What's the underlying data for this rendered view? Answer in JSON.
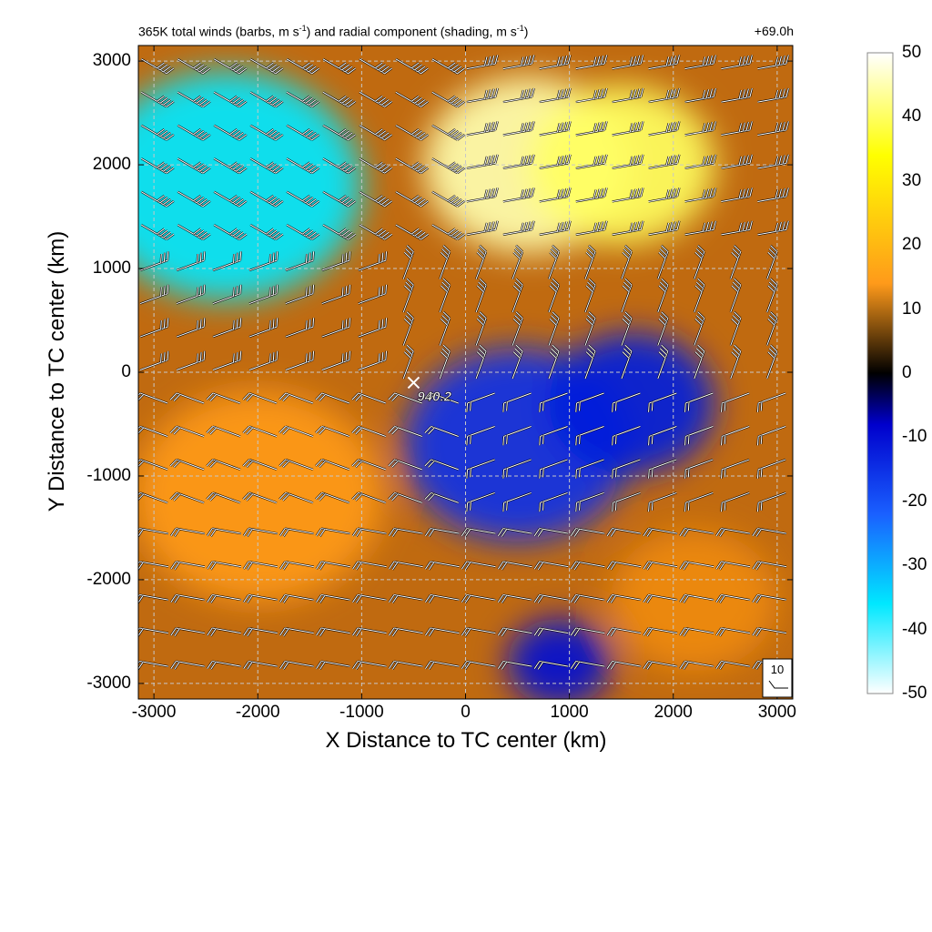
{
  "header": {
    "title_main": "365K total winds (barbs, m s",
    "title_sup1": "-1",
    "title_mid": ") and radial component (shading, m s",
    "title_sup2": "-1",
    "title_end": ")",
    "lead_time": "+69.0h"
  },
  "chart_data": {
    "type": "heatmap",
    "title": "365K total winds (barbs, m s-1) and radial component (shading, m s-1)",
    "lead_time": "+69.0h",
    "xlabel": "X Distance to TC center (km)",
    "ylabel": "Y Distance to TC center (km)",
    "xlim": [
      -3150,
      3150
    ],
    "ylim": [
      -3150,
      3150
    ],
    "xticks": [
      "-3000",
      "-2000",
      "-1000",
      "0",
      "1000",
      "2000",
      "3000"
    ],
    "yticks": [
      "3000",
      "2000",
      "1000",
      "0",
      "-1000",
      "-2000",
      "-3000"
    ],
    "grid": true,
    "colorbar": {
      "range": [
        -50,
        50
      ],
      "ticks": [
        "50",
        "40",
        "30",
        "20",
        "10",
        "0",
        "-10",
        "-20",
        "-30",
        "-40",
        "-50"
      ],
      "colormap": [
        "#ffffff",
        "#00e0ff",
        "#0000cc",
        "#000000",
        "#c86400",
        "#ffff00",
        "#ffffff"
      ]
    },
    "radial_wind_regions": [
      {
        "x": -2300,
        "y": 1800,
        "radius": 1300,
        "value": -38
      },
      {
        "x": 600,
        "y": 2000,
        "radius": 1000,
        "value": 45
      },
      {
        "x": 1500,
        "y": 2000,
        "radius": 900,
        "value": 40
      },
      {
        "x": 500,
        "y": -700,
        "radius": 1100,
        "value": -15
      },
      {
        "x": 1600,
        "y": -300,
        "radius": 800,
        "value": -12
      },
      {
        "x": -2000,
        "y": -1200,
        "radius": 1200,
        "value": 18
      },
      {
        "x": 2200,
        "y": -2200,
        "radius": 800,
        "value": 15
      },
      {
        "x": 900,
        "y": -2800,
        "radius": 500,
        "value": -10
      }
    ],
    "center_marker": {
      "x": -500,
      "y": -100,
      "label": "940.2"
    },
    "barb_reference": {
      "label": "10",
      "speed": 10
    }
  },
  "colors": {
    "barb": "#ffffff",
    "grid": "#c8c8c8",
    "center_label": "#ffffff"
  }
}
